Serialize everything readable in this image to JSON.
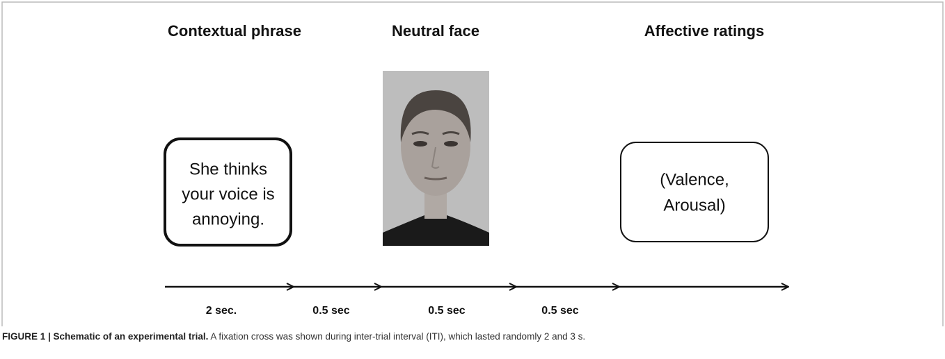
{
  "stages": [
    {
      "title": "Contextual phrase",
      "content_lines": [
        "She thinks",
        "your voice is",
        "annoying."
      ]
    },
    {
      "title": "Neutral face"
    },
    {
      "title": "Affective ratings",
      "content_lines": [
        "(Valence,",
        "Arousal)"
      ]
    }
  ],
  "durations": [
    "2 sec.",
    "0.5 sec",
    "0.5 sec",
    "0.5 sec"
  ],
  "caption": {
    "label": "FIGURE 1 | Schematic of an experimental trial.",
    "text": " A fixation cross was shown during inter-trial interval (ITI), which lasted randomly 2 and 3 s."
  }
}
